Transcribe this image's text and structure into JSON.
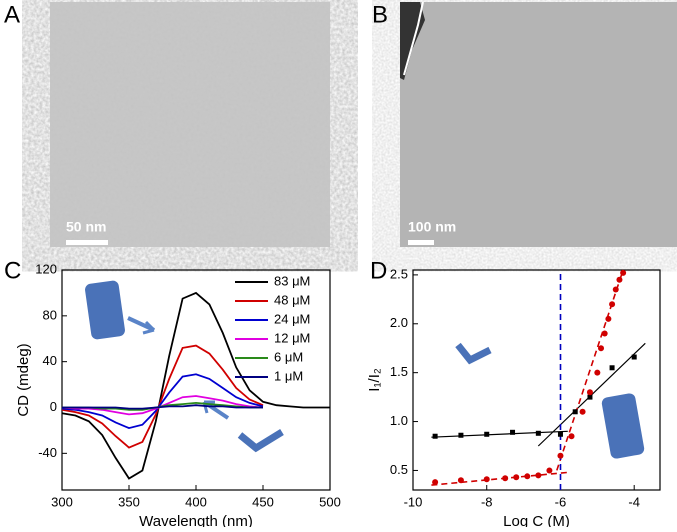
{
  "panels": [
    {
      "label": "A",
      "scale_bar": "50 nm"
    },
    {
      "label": "B",
      "scale_bar": "100 nm"
    },
    {
      "label": "C"
    },
    {
      "label": "D"
    }
  ],
  "chart_data": [
    {
      "type": "line",
      "x_label": "Wavelength (nm)",
      "y_label": "CD (mdeg)",
      "x": [
        300,
        310,
        320,
        330,
        340,
        350,
        360,
        370,
        380,
        390,
        400,
        410,
        420,
        430,
        440,
        450,
        460,
        470,
        480,
        490,
        500
      ],
      "xlim": [
        300,
        500
      ],
      "xticks": [
        300,
        350,
        400,
        450,
        500
      ],
      "ylim": [
        -72,
        120
      ],
      "yticks": [
        -40,
        0,
        40,
        80,
        120
      ],
      "legend": "upper right",
      "series": [
        {
          "name": "83 μM",
          "color": "#000000",
          "values": [
            -5,
            -7,
            -12,
            -24,
            -44,
            -62,
            -55,
            -12,
            45,
            95,
            100,
            90,
            65,
            35,
            15,
            5,
            2,
            1,
            0,
            0,
            0
          ]
        },
        {
          "name": "48 μM",
          "color": "#d00000",
          "values": [
            -2,
            -4,
            -7,
            -14,
            -25,
            -35,
            -30,
            -6,
            25,
            52,
            54,
            47,
            33,
            17,
            7,
            2,
            null,
            null,
            null,
            null,
            null
          ]
        },
        {
          "name": "24 μM",
          "color": "#0000d0",
          "values": [
            -1,
            -2,
            -4,
            -7,
            -13,
            -18,
            -15,
            -3,
            13,
            27,
            29,
            25,
            17,
            9,
            4,
            1,
            null,
            null,
            null,
            null,
            null
          ]
        },
        {
          "name": "12 μM",
          "color": "#e000e0",
          "values": [
            0,
            -1,
            -1,
            -2,
            -4,
            -6,
            -5,
            -1,
            4,
            9,
            10,
            8,
            6,
            3,
            1,
            0,
            null,
            null,
            null,
            null,
            null
          ]
        },
        {
          "name": "6 μM",
          "color": "#2a8a1a",
          "values": [
            0,
            0,
            0,
            -1,
            -1,
            -2,
            -2,
            0,
            2,
            3,
            4,
            3,
            2,
            1,
            0,
            0,
            null,
            null,
            null,
            null,
            null
          ]
        },
        {
          "name": "1 μM",
          "color": "#000080",
          "values": [
            0,
            0,
            0,
            0,
            0,
            -1,
            -1,
            0,
            1,
            1,
            2,
            1,
            1,
            0,
            0,
            0,
            null,
            null,
            null,
            null,
            null
          ]
        }
      ]
    },
    {
      "type": "scatter",
      "x_label": "Log C (M)",
      "y_label": "I₁/I₂",
      "xlim": [
        -10,
        -3.3
      ],
      "xticks": [
        -10,
        -8,
        -6,
        -4
      ],
      "ylim": [
        0.3,
        2.55
      ],
      "yticks": [
        0.5,
        {
          "value": 1,
          "label": "1.0"
        },
        1.5,
        {
          "value": 2,
          "label": "2.0"
        },
        2.5
      ],
      "series": [
        {
          "marker": "square",
          "color": "#000000",
          "x": [
            -9.4,
            -8.7,
            -8,
            -7.3,
            -6.6,
            -6,
            -5.6,
            -5.2,
            -4.6,
            -4
          ],
          "values": [
            0.85,
            0.86,
            0.87,
            0.89,
            0.88,
            0.87,
            1.1,
            1.25,
            1.55,
            1.66
          ]
        },
        {
          "marker": "circle",
          "color": "#d00000",
          "x": [
            -9.4,
            -8.7,
            -8,
            -7.5,
            -7.2,
            -6.9,
            -6.6,
            -6.3,
            -6,
            -5.7,
            -5.4,
            -5.2,
            -5,
            -4.9,
            -4.8,
            -4.7,
            -4.6,
            -4.5,
            -4.4,
            -4.3
          ],
          "values": [
            0.38,
            0.4,
            0.41,
            0.42,
            0.43,
            0.44,
            0.45,
            0.5,
            0.65,
            0.85,
            1.1,
            1.3,
            1.5,
            1.75,
            1.9,
            2.05,
            2.2,
            2.35,
            2.45,
            2.52
          ]
        }
      ],
      "lines": [
        {
          "color": "#000000",
          "dashed": false,
          "x": [
            -9.5,
            -5.8
          ],
          "values": [
            0.84,
            0.9
          ]
        },
        {
          "color": "#000000",
          "dashed": false,
          "x": [
            -6.6,
            -3.7
          ],
          "values": [
            0.75,
            1.8
          ]
        },
        {
          "color": "#d00000",
          "dashed": true,
          "x": [
            -9.5,
            -5.8
          ],
          "values": [
            0.35,
            0.48
          ]
        },
        {
          "color": "#d00000",
          "dashed": true,
          "x": [
            -6.1,
            -4.3
          ],
          "values": [
            0.5,
            2.55
          ]
        },
        {
          "color": "#0000c0",
          "dashed": true,
          "x": [
            -6,
            -6
          ],
          "values": [
            0.3,
            2.55
          ]
        }
      ]
    }
  ]
}
